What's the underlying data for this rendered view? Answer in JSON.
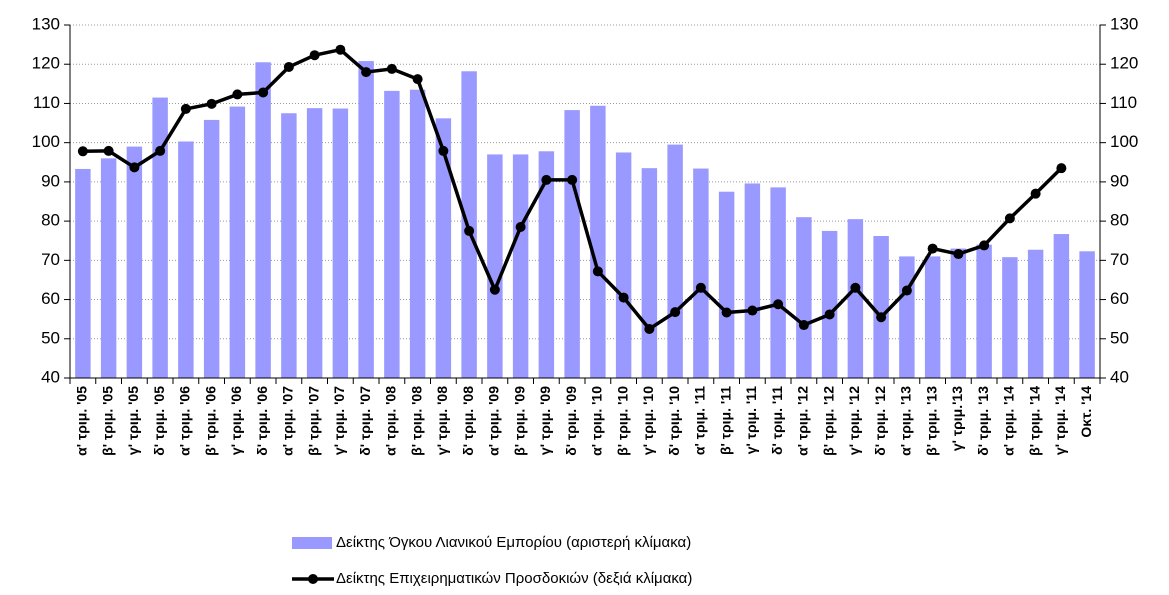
{
  "chart_data": {
    "type": "bar",
    "categories": [
      "α' τριμ. '05",
      "β' τριμ. '05",
      "γ' τριμ. '05",
      "δ' τριμ. '05",
      "α' τριμ. '06",
      "β' τριμ. '06",
      "γ' τριμ. '06",
      "δ' τριμ. '06",
      "α' τριμ. '07",
      "β' τριμ. '07",
      "γ' τριμ. '07",
      "δ' τριμ. '07",
      "α' τριμ. '08",
      "β' τριμ. '08",
      "γ' τριμ. '08",
      "δ' τριμ. '08",
      "α' τριμ. '09",
      "β' τριμ. '09",
      "γ' τριμ. '09",
      "δ' τριμ. '09",
      "α' τριμ. '10",
      "β' τριμ. '10",
      "γ' τριμ. '10",
      "δ' τριμ. '10",
      "α' τριμ. '11",
      "β' τριμ. '11",
      "γ' τριμ. '11",
      "δ' τριμ. '11",
      "α' τριμ. '12",
      "β' τριμ. '12",
      "γ' τριμ. '12",
      "δ' τριμ. '12",
      "α' τριμ. '13",
      "β' τριμ. '13",
      "γ' τριμ.'13",
      "δ' τριμ. '13",
      "α' τριμ. '14",
      "β' τριμ. '14",
      "γ' τριμ. '14",
      "Οκτ. '14"
    ],
    "series": [
      {
        "name": "Δείκτης Όγκου Λιανικού Εμπορίου (αριστερή κλίμακα)",
        "type": "bar",
        "color": "#9999ff",
        "values": [
          93.3,
          96,
          99,
          111.5,
          100.3,
          105.8,
          109.2,
          120.5,
          107.5,
          108.8,
          108.7,
          120.8,
          113.2,
          113.5,
          106.2,
          118.2,
          97,
          97,
          97.8,
          108.3,
          109.4,
          97.5,
          93.5,
          99.5,
          93.4,
          87.5,
          89.6,
          88.6,
          81,
          77.5,
          80.5,
          76.2,
          71,
          71,
          73,
          74,
          70.8,
          72.7,
          76.7,
          72.3
        ]
      },
      {
        "name": "Δείκτης Επιχειρηματικών Προσδοκιών (δεξιά κλίμακα)",
        "type": "line",
        "color": "#000000",
        "axis": "y2",
        "values": [
          97.8,
          97.9,
          93.7,
          97.9,
          108.6,
          109.9,
          112.3,
          112.8,
          119.3,
          122.3,
          123.7,
          118,
          118.8,
          116.2,
          97.9,
          77.5,
          62.5,
          78.5,
          90.5,
          90.5,
          67.2,
          60.5,
          52.5,
          56.8,
          63,
          56.7,
          57.2,
          58.8,
          53.5,
          56.2,
          63,
          55.5,
          62.3,
          73,
          71.6,
          73.8,
          80.7,
          87,
          93.5,
          null
        ]
      }
    ],
    "ylim": [
      40,
      130
    ],
    "yticks": [
      40,
      50,
      60,
      70,
      80,
      90,
      100,
      110,
      120,
      130
    ],
    "y2lim": [
      40,
      130
    ],
    "y2ticks": [
      40,
      50,
      60,
      70,
      80,
      90,
      100,
      110,
      120,
      130
    ],
    "grid": true,
    "legend": "bottom"
  }
}
